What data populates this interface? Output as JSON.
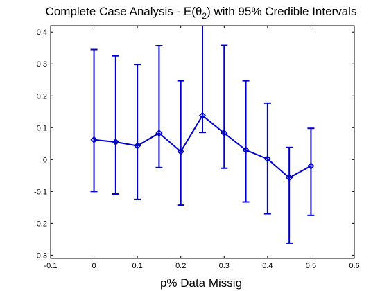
{
  "chart_data": {
    "type": "line",
    "title": {
      "prefix": "Complete Case Analysis - E(",
      "symbol": "θ",
      "subscript": "2",
      "suffix": ") with 95% Credible Intervals"
    },
    "xlabel": "p% Data Missig",
    "ylabel": "",
    "xlim": [
      -0.1,
      0.6
    ],
    "ylim": [
      -0.31,
      0.42
    ],
    "xticks": [
      -0.1,
      0,
      0.1,
      0.2,
      0.3,
      0.4,
      0.5,
      0.6
    ],
    "xtick_labels": [
      "-0.1",
      "0",
      "0.1",
      "0.2",
      "0.3",
      "0.4",
      "0.5",
      "0.6"
    ],
    "yticks": [
      -0.3,
      -0.2,
      -0.1,
      0,
      0.1,
      0.2,
      0.3,
      0.4
    ],
    "ytick_labels": [
      "-0.3",
      "-0.2",
      "-0.1",
      "0",
      "0.1",
      "0.2",
      "0.3",
      "0.4"
    ],
    "grid": false,
    "series": [
      {
        "color": "#0000cc",
        "marker": "diamond",
        "x": [
          0,
          0.05,
          0.1,
          0.15,
          0.2,
          0.25,
          0.3,
          0.35,
          0.4,
          0.45,
          0.5
        ],
        "y": [
          0.062,
          0.055,
          0.043,
          0.083,
          0.025,
          0.138,
          0.083,
          0.03,
          0.002,
          -0.057,
          -0.02
        ],
        "lower": [
          -0.1,
          -0.108,
          -0.125,
          -0.025,
          -0.143,
          0.085,
          -0.027,
          -0.133,
          -0.17,
          -0.262,
          -0.175
        ],
        "upper": [
          0.345,
          0.325,
          0.298,
          0.357,
          0.247,
          0.42,
          0.358,
          0.247,
          0.177,
          0.038,
          0.098
        ]
      }
    ]
  }
}
